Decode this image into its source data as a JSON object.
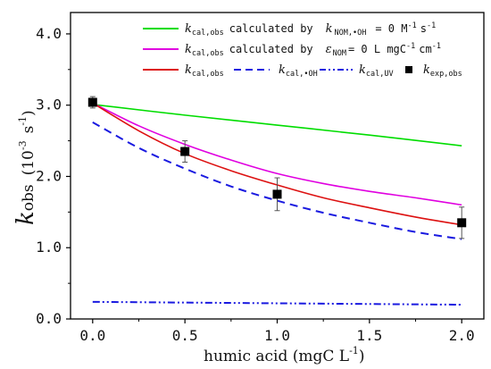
{
  "chart_data": {
    "type": "line",
    "xlabel": "humic acid (mgC L",
    "xlabel_sup": "-1",
    "xlabel_tail": ")",
    "ylabel": "k",
    "ylabel_sub": "obs",
    "ylabel_unit": "(10",
    "ylabel_unit_sup1": "-3",
    "ylabel_unit_mid": "s",
    "ylabel_unit_sup2": "-1",
    "ylabel_unit_tail": ")",
    "xlim": [
      -0.12,
      2.12
    ],
    "ylim": [
      0,
      4.3
    ],
    "x_ticks": [
      0.0,
      0.5,
      1.0,
      1.5,
      2.0
    ],
    "x_tick_labels": [
      "0.0",
      "0.5",
      "1.0",
      "1.5",
      "2.0"
    ],
    "y_ticks": [
      0.0,
      1.0,
      2.0,
      3.0,
      4.0
    ],
    "y_tick_labels": [
      "0.0",
      "1.0",
      "2.0",
      "3.0",
      "4.0"
    ],
    "legend_placement": "top",
    "series": [
      {
        "name": "k_cal,obs calculated by k_NOM,•OH = 0 M-1 s-1",
        "color": "#00dd00",
        "style": "solid",
        "x": [
          0.0,
          0.5,
          1.0,
          1.5,
          2.0
        ],
        "y": [
          3.01,
          2.86,
          2.72,
          2.58,
          2.43
        ]
      },
      {
        "name": "k_cal,obs calculated by ε_NOM = 0 L mgC-1 cm-1",
        "color": "#e000e0",
        "style": "solid",
        "x": [
          0.0,
          0.25,
          0.5,
          0.75,
          1.0,
          1.25,
          1.5,
          1.75,
          2.0
        ],
        "y": [
          3.03,
          2.71,
          2.45,
          2.23,
          2.04,
          1.9,
          1.79,
          1.7,
          1.6
        ]
      },
      {
        "name": "k_cal,obs",
        "color": "#dd1111",
        "style": "solid",
        "x": [
          0.0,
          0.25,
          0.5,
          0.75,
          1.0,
          1.25,
          1.5,
          1.75,
          2.0
        ],
        "y": [
          3.03,
          2.64,
          2.32,
          2.08,
          1.88,
          1.7,
          1.56,
          1.43,
          1.32
        ]
      },
      {
        "name": "k_cal,•OH",
        "color": "#1a1ae0",
        "style": "dashed",
        "x": [
          0.0,
          0.25,
          0.5,
          0.75,
          1.0,
          1.25,
          1.5,
          1.75,
          2.0
        ],
        "y": [
          2.76,
          2.4,
          2.11,
          1.86,
          1.66,
          1.49,
          1.35,
          1.22,
          1.12
        ]
      },
      {
        "name": "k_cal,UV",
        "color": "#1a1ae0",
        "style": "dashdotdot",
        "x": [
          0.0,
          0.5,
          1.0,
          1.5,
          2.0
        ],
        "y": [
          0.24,
          0.23,
          0.22,
          0.21,
          0.2
        ]
      },
      {
        "name": "k_exp,obs",
        "color": "#000000",
        "style": "markers",
        "x": [
          0.0,
          0.5,
          1.0,
          2.0
        ],
        "y": [
          3.04,
          2.35,
          1.75,
          1.35
        ],
        "yerr": [
          0.08,
          0.15,
          0.23,
          0.22
        ]
      }
    ],
    "legend": {
      "row1": {
        "label_main": "k",
        "label_sub": "cal,obs",
        "text": "calculated by",
        "param_main": "k",
        "param_sub": "NOM,•OH",
        "value": "= 0 M",
        "unit_sup1": "-1",
        "unit_mid": "s",
        "unit_sup2": "-1"
      },
      "row2": {
        "label_main": "k",
        "label_sub": "cal,obs",
        "text": "calculated by",
        "param_main": "ε",
        "param_sub": "NOM",
        "value": "= 0 L mgC",
        "unit_sup1": "-1",
        "unit_mid": "cm",
        "unit_sup2": "-1"
      },
      "row3": [
        {
          "label_main": "k",
          "label_sub": "cal,obs"
        },
        {
          "label_main": "k",
          "label_sub": "cal,•OH"
        },
        {
          "label_main": "k",
          "label_sub": "cal,UV"
        },
        {
          "label_main": "k",
          "label_sub": "exp,obs"
        }
      ]
    }
  }
}
